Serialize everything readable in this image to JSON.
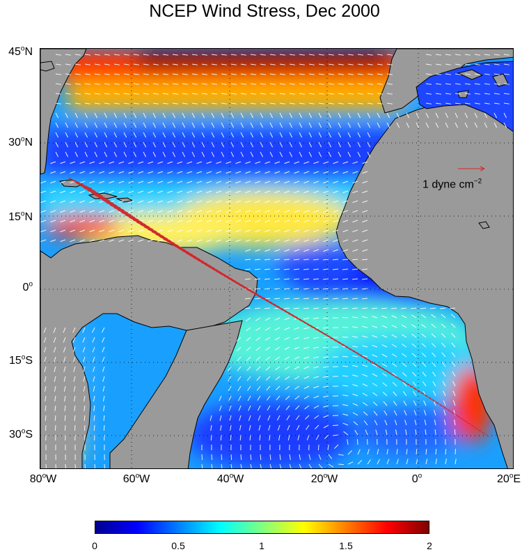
{
  "title": "NCEP Wind Stress, Dec 2000",
  "lat_ticks": [
    {
      "deg": "45",
      "hemi": "N"
    },
    {
      "deg": "30",
      "hemi": "N"
    },
    {
      "deg": "15",
      "hemi": "N"
    },
    {
      "deg": "0",
      "hemi": ""
    },
    {
      "deg": "15",
      "hemi": "S"
    },
    {
      "deg": "30",
      "hemi": "S"
    }
  ],
  "lon_ticks": [
    {
      "deg": "80",
      "hemi": "W"
    },
    {
      "deg": "60",
      "hemi": "W"
    },
    {
      "deg": "40",
      "hemi": "W"
    },
    {
      "deg": "20",
      "hemi": "W"
    },
    {
      "deg": "0",
      "hemi": ""
    },
    {
      "deg": "20",
      "hemi": "E"
    }
  ],
  "reference_vector": {
    "text": "1 dyne cm",
    "exponent": "−2",
    "color": "#d2262b"
  },
  "colorbar": {
    "ticks": [
      "0",
      "0.5",
      "1",
      "1.5",
      "2"
    ],
    "colors": [
      "#00008f",
      "#0000ff",
      "#0080ff",
      "#00ffff",
      "#80ff80",
      "#ffff00",
      "#ff8000",
      "#ff0000",
      "#800000"
    ]
  },
  "colors": {
    "land": "#9a9a9a",
    "vector": "#ffffff",
    "vector_over_limit": "#d2262b"
  }
}
